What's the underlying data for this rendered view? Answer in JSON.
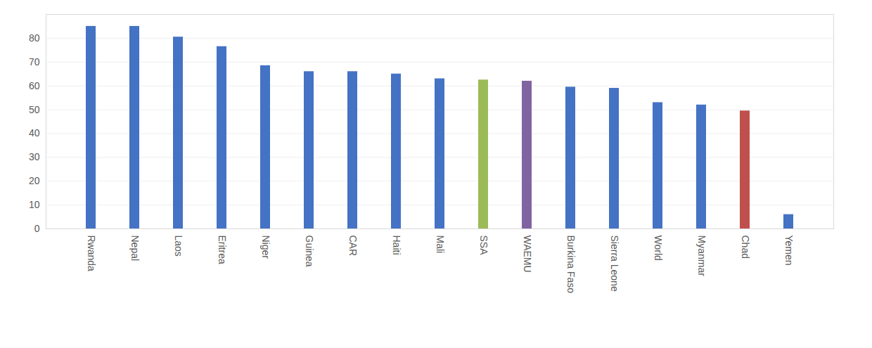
{
  "chart_data": {
    "type": "bar",
    "categories": [
      "Rwanda",
      "Nepal",
      "Laos",
      "Eritrea",
      "Niger",
      "Guinea",
      "CAR",
      "Haiti",
      "Mali",
      "SSA",
      "WAEMU",
      "Burkina Faso",
      "Sierra Leone",
      "World",
      "Myanmar",
      "Chad",
      "Yemen"
    ],
    "values": [
      85,
      85,
      80.5,
      76.5,
      68.5,
      66,
      66,
      65,
      63,
      62.5,
      62,
      59.5,
      59,
      53,
      52,
      49.5,
      6
    ],
    "colors": [
      "#4472c4",
      "#4472c4",
      "#4472c4",
      "#4472c4",
      "#4472c4",
      "#4472c4",
      "#4472c4",
      "#4472c4",
      "#4472c4",
      "#9bbb59",
      "#8064a2",
      "#4472c4",
      "#4472c4",
      "#4472c4",
      "#4472c4",
      "#c0504d",
      "#4472c4"
    ],
    "ylim": [
      0,
      90
    ],
    "yticks": [
      0,
      10,
      20,
      30,
      40,
      50,
      60,
      70,
      80
    ],
    "grid": true
  }
}
